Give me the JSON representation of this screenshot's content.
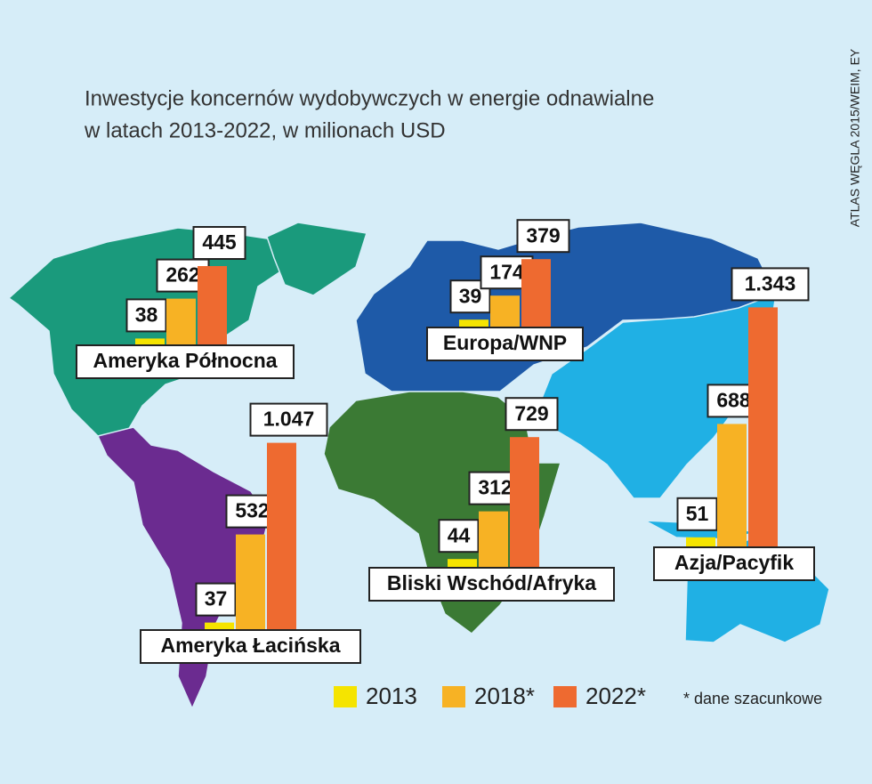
{
  "chart_data": {
    "type": "map-bar",
    "title": [
      "Inwestycje koncernów wydobywczych w energie odnawialne",
      "w latach 2013-2022, w milionach USD"
    ],
    "source": "ATLAS WĘGLA 2015/WEIM, EY",
    "note": "* dane szacunkowe",
    "categories": [
      "Ameryka Północna",
      "Ameryka Łacińska",
      "Europa/WNP",
      "Bliski Wschód/Afryka",
      "Azja/Pacyfik"
    ],
    "series": [
      {
        "name": "2013",
        "color": "#f5e400",
        "values": [
          38,
          37,
          39,
          44,
          51
        ]
      },
      {
        "name": "2018*",
        "color": "#f7b224",
        "values": [
          262,
          532,
          174,
          312,
          688
        ]
      },
      {
        "name": "2022*",
        "color": "#ee6a30",
        "values": [
          445,
          1047,
          379,
          729,
          1343
        ],
        "value_labels": [
          "445",
          "1.047",
          "379",
          "729",
          "1.343"
        ]
      }
    ]
  }
}
